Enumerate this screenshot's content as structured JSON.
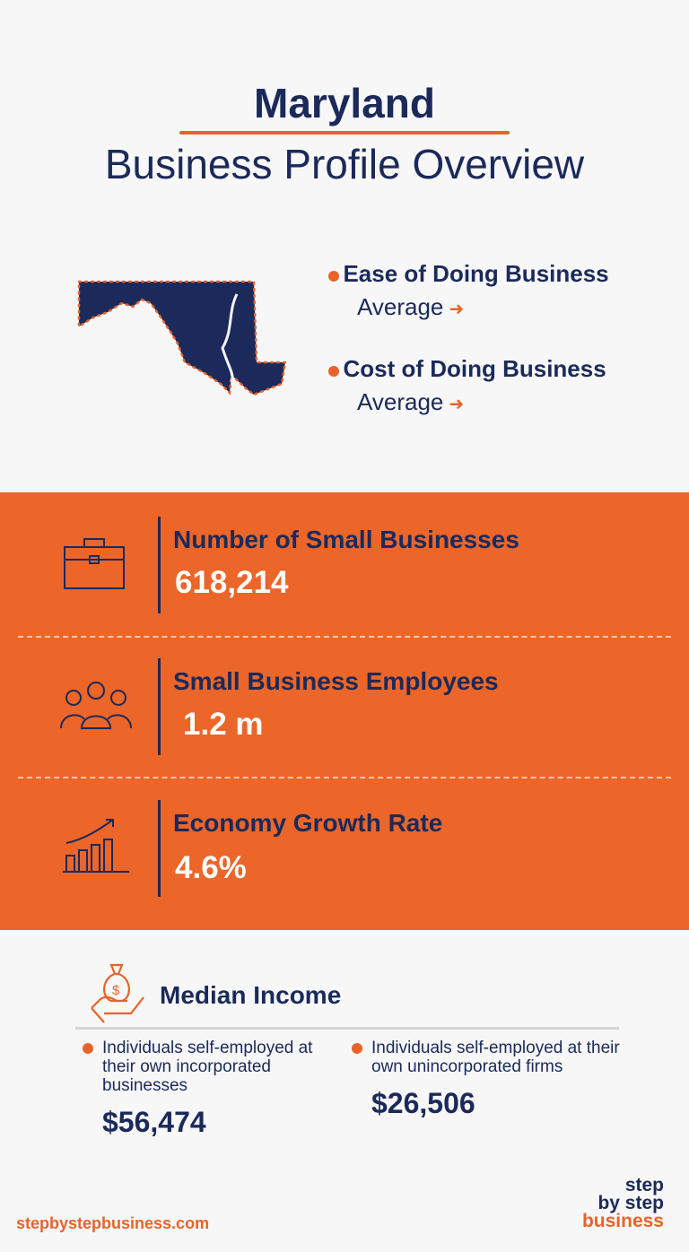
{
  "header": {
    "title": "Maryland",
    "subtitle": "Business Profile Overview"
  },
  "overview": [
    {
      "label": "Ease of Doing Business",
      "value": "Average"
    },
    {
      "label": "Cost of Doing Business",
      "value": "Average"
    }
  ],
  "stats": [
    {
      "label": "Number of Small Businesses",
      "value": "618,214",
      "icon": "briefcase-icon"
    },
    {
      "label": "Small Business Employees",
      "value": "1.2 m",
      "icon": "people-icon"
    },
    {
      "label": "Economy Growth Rate",
      "value": "4.6%",
      "icon": "growth-chart-icon"
    }
  ],
  "median_income": {
    "title": "Median Income",
    "items": [
      {
        "label": "Individuals self-employed at their own incorporated businesses",
        "value": "$56,474"
      },
      {
        "label": "Individuals self-employed at their own unincorporated firms",
        "value": "$26,506"
      }
    ]
  },
  "footer": {
    "url": "stepbystepbusiness.com",
    "logo": [
      "step",
      "by step",
      "business"
    ]
  },
  "colors": {
    "navy": "#1b2a5a",
    "orange": "#ec6529",
    "background": "#f7f7f7"
  }
}
